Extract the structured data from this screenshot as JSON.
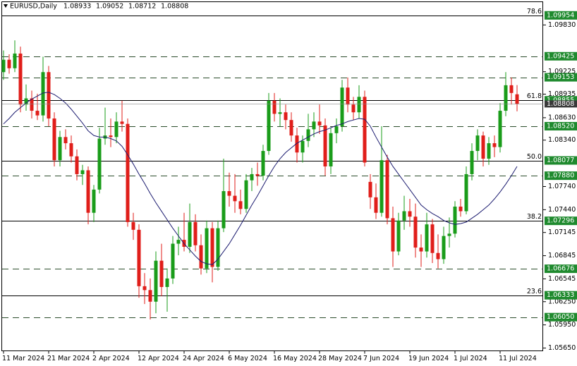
{
  "chart_data": {
    "type": "candlestick",
    "symbol": "EURUSD,Daily",
    "categories": [
      "11 Mar 2024",
      null,
      null,
      null,
      null,
      null,
      null,
      null,
      "21 Mar 2024",
      null,
      null,
      null,
      null,
      null,
      null,
      null,
      "2 Apr 2024",
      null,
      null,
      null,
      null,
      null,
      null,
      null,
      "12 Apr 2024",
      null,
      null,
      null,
      null,
      null,
      null,
      null,
      "24 Apr 2024",
      null,
      null,
      null,
      null,
      null,
      null,
      null,
      "6 May 2024",
      null,
      null,
      null,
      null,
      null,
      null,
      null,
      "16 May 2024",
      null,
      null,
      null,
      null,
      null,
      null,
      null,
      "28 May 2024",
      null,
      null,
      null,
      null,
      null,
      null,
      null,
      "7 Jun 2024",
      null,
      null,
      null,
      null,
      null,
      null,
      null,
      "19 Jun 2024",
      null,
      null,
      null,
      null,
      null,
      null,
      null,
      "1 Jul 2024",
      null,
      null,
      null,
      null,
      null,
      null,
      null,
      "11 Jul 2024",
      null,
      null,
      null
    ],
    "open": [
      1.0922,
      1.0938,
      1.0927,
      1.0946,
      1.088,
      1.0888,
      1.0872,
      1.0866,
      1.0922,
      1.0862,
      1.0808,
      1.0838,
      1.083,
      1.0813,
      1.079,
      1.0795,
      1.074,
      1.077,
      1.0836,
      1.084,
      1.0838,
      1.0858,
      1.0855,
      1.0728,
      1.0718,
      1.0645,
      1.064,
      1.0625,
      1.0678,
      1.0644,
      1.0655,
      1.07,
      1.0705,
      1.0696,
      1.0728,
      1.0698,
      1.0668,
      1.072,
      1.067,
      1.072,
      1.0768,
      1.0762,
      1.0755,
      1.0745,
      1.0782,
      1.079,
      1.0788,
      1.082,
      1.0885,
      1.0868,
      1.087,
      1.086,
      1.084,
      1.0818,
      1.0833,
      1.0848,
      1.0858,
      1.0853,
      1.08,
      1.0843,
      1.0852,
      1.0902,
      1.088,
      1.087,
      1.089,
      1.078,
      1.076,
      1.074,
      1.0808,
      1.0733,
      1.069,
      1.073,
      1.0742,
      1.0735,
      1.0695,
      1.069,
      1.0725,
      1.0688,
      1.068,
      1.071,
      1.0713,
      1.0748,
      1.0742,
      1.079,
      1.082,
      1.084,
      1.081,
      1.083,
      1.0825,
      1.0872,
      1.0905,
      1.08933
    ],
    "high": [
      1.095,
      1.0945,
      1.0963,
      1.0955,
      1.0906,
      1.0898,
      1.0894,
      1.0942,
      1.093,
      1.087,
      1.0846,
      1.0848,
      1.084,
      1.0822,
      1.0802,
      1.08,
      1.0776,
      1.085,
      1.0876,
      1.0862,
      1.087,
      1.0885,
      1.0862,
      1.074,
      1.0725,
      1.0662,
      1.0655,
      1.069,
      1.07,
      1.0668,
      1.071,
      1.0722,
      1.074,
      1.0752,
      1.0738,
      1.0712,
      1.073,
      1.0728,
      1.073,
      1.081,
      1.0792,
      1.079,
      1.077,
      1.079,
      1.0798,
      1.0805,
      1.0828,
      1.0895,
      1.0895,
      1.0888,
      1.088,
      1.087,
      1.085,
      1.084,
      1.0868,
      1.087,
      1.088,
      1.0862,
      1.085,
      1.0862,
      1.0912,
      1.0915,
      1.089,
      1.0905,
      1.0898,
      1.079,
      1.0778,
      1.0852,
      1.0815,
      1.0748,
      1.074,
      1.0762,
      1.0758,
      1.0752,
      1.0712,
      1.074,
      1.0732,
      1.0712,
      1.0722,
      1.0734,
      1.0755,
      1.0758,
      1.08,
      1.083,
      1.0848,
      1.0845,
      1.0838,
      1.084,
      1.0882,
      1.0922,
      1.0915,
      1.09052
    ],
    "low": [
      1.0912,
      1.092,
      1.0922,
      1.087,
      1.0872,
      1.0862,
      1.086,
      1.0858,
      1.0852,
      1.08,
      1.08,
      1.0822,
      1.0805,
      1.0782,
      1.0776,
      1.0725,
      1.0728,
      1.0765,
      1.0828,
      1.0825,
      1.083,
      1.0845,
      1.0722,
      1.0705,
      1.063,
      1.0622,
      1.0602,
      1.061,
      1.0632,
      1.0612,
      1.0648,
      1.0685,
      1.069,
      1.0688,
      1.069,
      1.066,
      1.0662,
      1.065,
      1.0665,
      1.0715,
      1.0748,
      1.074,
      1.0738,
      1.074,
      1.0768,
      1.0775,
      1.0782,
      1.0815,
      1.0858,
      1.0852,
      1.0848,
      1.0832,
      1.0805,
      1.0805,
      1.0825,
      1.0838,
      1.0842,
      1.0788,
      1.079,
      1.083,
      1.0845,
      1.087,
      1.086,
      1.0862,
      1.08,
      1.0745,
      1.0732,
      1.0735,
      1.0725,
      1.067,
      1.0685,
      1.0718,
      1.0722,
      1.0682,
      1.067,
      1.0682,
      1.0675,
      1.0668,
      1.0674,
      1.0695,
      1.0708,
      1.0735,
      1.0738,
      1.0782,
      1.0808,
      1.08,
      1.0802,
      1.0812,
      1.0818,
      1.0865,
      1.088,
      1.08712
    ],
    "close": [
      1.0938,
      1.0927,
      1.0946,
      1.088,
      1.0888,
      1.0872,
      1.0866,
      1.0922,
      1.0862,
      1.0808,
      1.0838,
      1.083,
      1.0813,
      1.079,
      1.0795,
      1.074,
      1.077,
      1.0836,
      1.084,
      1.0838,
      1.0858,
      1.0855,
      1.0728,
      1.0718,
      1.0645,
      1.064,
      1.0625,
      1.0678,
      1.0644,
      1.0655,
      1.07,
      1.0705,
      1.0696,
      1.0728,
      1.0698,
      1.0668,
      1.072,
      1.067,
      1.072,
      1.0768,
      1.0762,
      1.0755,
      1.0745,
      1.0782,
      1.079,
      1.0788,
      1.082,
      1.0885,
      1.0868,
      1.087,
      1.086,
      1.084,
      1.0818,
      1.0833,
      1.0848,
      1.0858,
      1.0853,
      1.08,
      1.0843,
      1.0852,
      1.0902,
      1.088,
      1.087,
      1.089,
      1.0805,
      1.076,
      1.074,
      1.0808,
      1.0733,
      1.069,
      1.073,
      1.0742,
      1.0735,
      1.0695,
      1.069,
      1.0725,
      1.0688,
      1.068,
      1.071,
      1.0713,
      1.0748,
      1.0742,
      1.079,
      1.082,
      1.084,
      1.081,
      1.083,
      1.0825,
      1.0872,
      1.0905,
      1.0895,
      1.08808
    ],
    "up_color": "#1a9c1a",
    "down_color": "#e01e1a",
    "ma": {
      "color": "#1c1c70",
      "values": [
        1.0855,
        1.0862,
        1.087,
        1.0876,
        1.0882,
        1.0887,
        1.0891,
        1.0895,
        1.0896,
        1.0893,
        1.0888,
        1.0882,
        1.0874,
        1.0865,
        1.0856,
        1.0846,
        1.084,
        1.0838,
        1.0838,
        1.0836,
        1.0833,
        1.0826,
        1.0815,
        1.0803,
        1.079,
        1.0778,
        1.0765,
        1.0753,
        1.0742,
        1.0731,
        1.072,
        1.071,
        1.07,
        1.0692,
        1.0684,
        1.0677,
        1.0674,
        1.0673,
        1.068,
        1.069,
        1.07,
        1.0712,
        1.0724,
        1.0737,
        1.075,
        1.0762,
        1.0775,
        1.0788,
        1.08,
        1.081,
        1.0818,
        1.0824,
        1.083,
        1.0834,
        1.0838,
        1.0842,
        1.0845,
        1.0847,
        1.085,
        1.0853,
        1.0855,
        1.0858,
        1.086,
        1.0862,
        1.0861,
        1.0852,
        1.0838,
        1.0825,
        1.0812,
        1.08,
        1.079,
        1.078,
        1.077,
        1.076,
        1.075,
        1.0744,
        1.0739,
        1.0735,
        1.073,
        1.0727,
        1.0725,
        1.0726,
        1.0728,
        1.0733,
        1.0738,
        1.0744,
        1.075,
        1.0758,
        1.0767,
        1.0777,
        1.0788,
        1.08
      ]
    },
    "ylim": [
      1.05614,
      1.1013
    ],
    "yticks": [
      {
        "value": 1.0983,
        "label": "1.09830"
      },
      1.09225,
      1.08935,
      {
        "value": 1.0863,
        "label": "1.08630"
      },
      {
        "value": 1.0834,
        "label": "1.08340"
      },
      {
        "value": 1.0774,
        "label": "1.07740"
      },
      {
        "value": 1.0744,
        "label": "1.07440"
      },
      1.07145,
      1.06845,
      1.06545,
      {
        "value": 1.0625,
        "label": "1.06250"
      },
      {
        "value": 1.0595,
        "label": "1.05950"
      },
      {
        "value": 1.0565,
        "label": "1.05650"
      }
    ],
    "level_color": "#1f8a2e",
    "levels": [
      {
        "value": 1.09954,
        "fib": "78.6"
      },
      {
        "value": 1.09425
      },
      {
        "value": 1.09153
      },
      {
        "value": 1.08855,
        "fib": "61.8"
      },
      {
        "value": 1.0852,
        "label": "1.08520"
      },
      {
        "value": 1.08077,
        "fib": "50.0"
      },
      {
        "value": 1.0788,
        "label": "1.07880"
      },
      {
        "value": 1.07296,
        "fib": "38.2"
      },
      {
        "value": 1.06676
      },
      {
        "value": 1.06333,
        "fib": "23.6"
      },
      {
        "value": 1.0605,
        "label": "1.06050"
      }
    ]
  }
}
